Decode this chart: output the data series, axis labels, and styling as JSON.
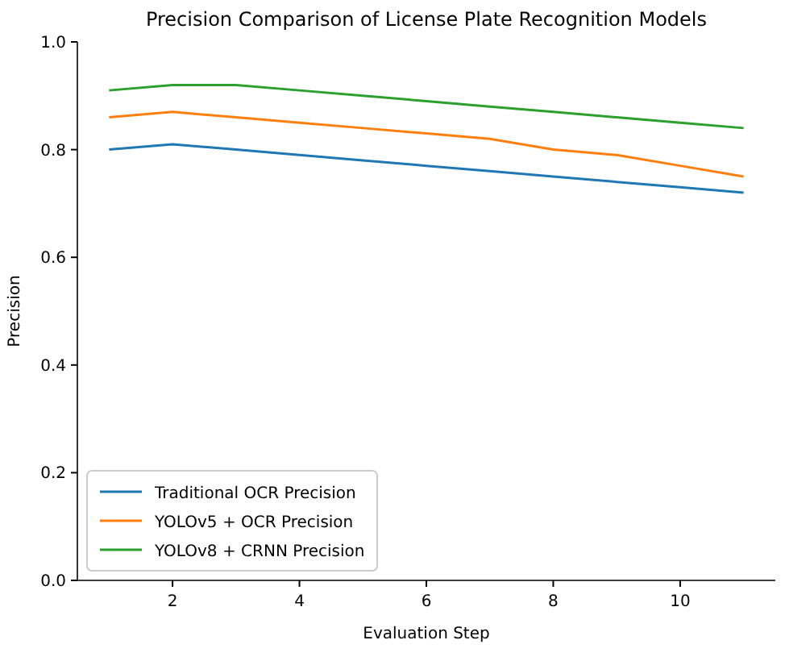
{
  "chart_data": {
    "type": "line",
    "title": "Precision Comparison of License Plate Recognition Models",
    "xlabel": "Evaluation Step",
    "ylabel": "Precision",
    "x": [
      1,
      2,
      3,
      4,
      5,
      6,
      7,
      8,
      9,
      10,
      11
    ],
    "series": [
      {
        "name": "Traditional OCR Precision",
        "color": "#1f77b4",
        "values": [
          0.8,
          0.81,
          0.8,
          0.79,
          0.78,
          0.77,
          0.76,
          0.75,
          0.74,
          0.73,
          0.72
        ]
      },
      {
        "name": "YOLOv5 + OCR Precision",
        "color": "#ff7f0e",
        "values": [
          0.86,
          0.87,
          0.86,
          0.85,
          0.84,
          0.83,
          0.82,
          0.8,
          0.79,
          0.77,
          0.75
        ]
      },
      {
        "name": "YOLOv8 + CRNN Precision",
        "color": "#2ca02c",
        "values": [
          0.91,
          0.92,
          0.92,
          0.91,
          0.9,
          0.89,
          0.88,
          0.87,
          0.86,
          0.85,
          0.84
        ]
      }
    ],
    "xlim": [
      0.5,
      11.5
    ],
    "ylim": [
      0,
      1
    ],
    "xticks": [
      2,
      4,
      6,
      8,
      10
    ],
    "yticks": [
      {
        "value": 0,
        "label": "0.0"
      },
      {
        "value": 0.2,
        "label": "0.2"
      },
      {
        "value": 0.4,
        "label": "0.4"
      },
      {
        "value": 0.6,
        "label": "0.6"
      },
      {
        "value": 0.8,
        "label": "0.8"
      },
      {
        "value": 1,
        "label": "1.0"
      }
    ],
    "legend": "bottom left"
  }
}
